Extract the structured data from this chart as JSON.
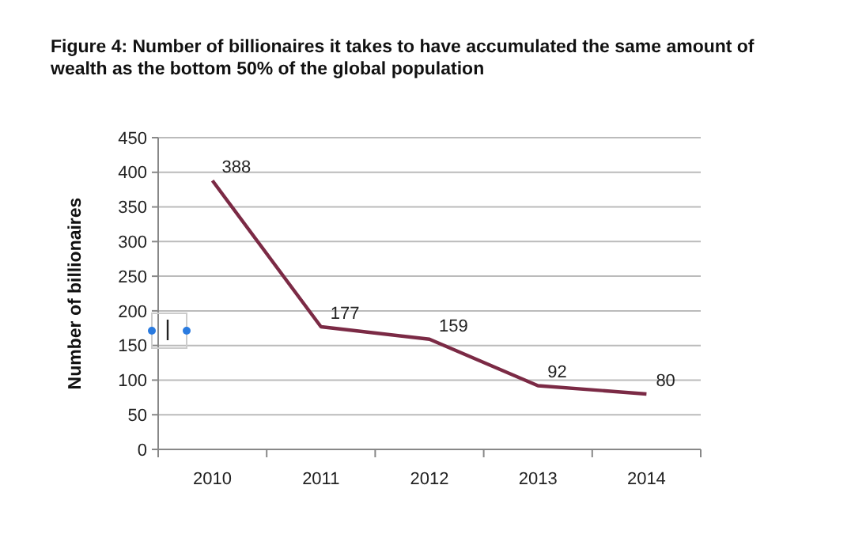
{
  "chart_data": {
    "type": "line",
    "title": "Figure 4: Number of billionaires it takes to have accumulated the same amount of wealth as the bottom 50% of the global population",
    "ylabel": "Number of billionaires",
    "categories": [
      "2010",
      "2011",
      "2012",
      "2013",
      "2014"
    ],
    "series": [
      {
        "color": "#7b2a45",
        "values": [
          388,
          177,
          159,
          92,
          80
        ]
      }
    ],
    "ylim": [
      0,
      450
    ],
    "yticks": [
      0,
      50,
      100,
      150,
      200,
      250,
      300,
      350,
      400,
      450
    ],
    "grid": "y",
    "data_labels": true,
    "marker": "none",
    "line_style": "solid"
  }
}
